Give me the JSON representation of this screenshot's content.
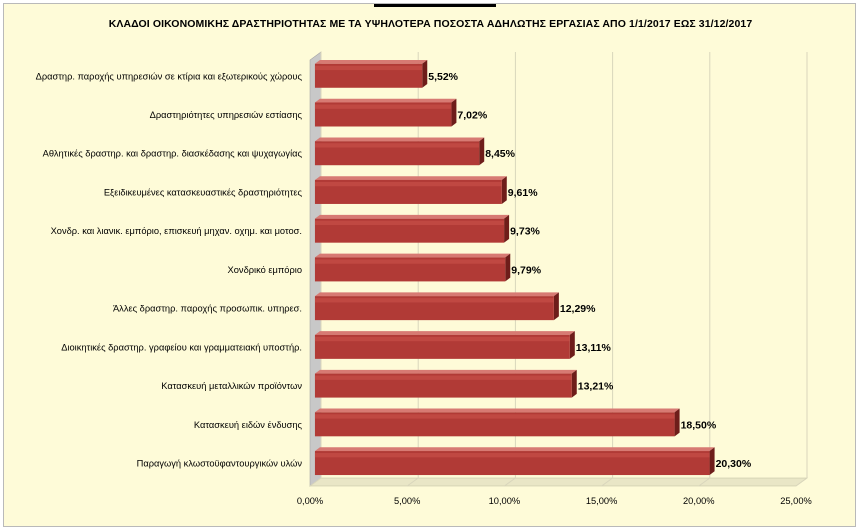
{
  "chart_data": {
    "type": "bar",
    "orientation": "horizontal",
    "title": "ΚΛΑΔΟΙ ΟΙΚΟΝΟΜΙΚΗΣ ΔΡΑΣΤΗΡΙΟΤΗΤΑΣ ΜΕ ΤΑ ΥΨΗΛΟΤΕΡΑ ΠΟΣΟΣΤΑ ΑΔΗΛΩΤΗΣ ΕΡΓΑΣΙΑΣ ΑΠΟ 1/1/2017 ΕΩΣ 31/12/2017",
    "xlabel": "",
    "ylabel": "",
    "xlim": [
      0,
      25
    ],
    "x_ticks": [
      "0,00%",
      "5,00%",
      "10,00%",
      "15,00%",
      "20,00%",
      "25,00%"
    ],
    "categories": [
      "Δραστηρ. παροχής υπηρεσιών σε κτίρια και εξωτερικούς χώρους",
      "Δραστηριότητες υπηρεσιών εστίασης",
      "Αθλητικές δραστηρ. και δραστηρ. διασκέδασης και ψυχαγωγίας",
      "Εξειδικευμένες κατασκευαστικές δραστηριότητες",
      "Χονδρ. και λιανικ. εμπόριο, επισκευή μηχαν. οχημ. και μοτοσ.",
      "Χονδρικό εμπόριο",
      "Άλλες δραστηρ. παροχής προσωπικ. υπηρεσ.",
      "Διοικητικές δραστηρ. γραφείου και γραμματειακή υποστήρ.",
      "Κατασκευή μεταλλικών προϊόντων",
      "Κατασκευή ειδών ένδυσης",
      "Παραγωγή κλωστοϋφαντουργικών υλών"
    ],
    "values": [
      5.52,
      7.02,
      8.45,
      9.61,
      9.73,
      9.79,
      12.29,
      13.11,
      13.21,
      18.5,
      20.3
    ],
    "value_labels": [
      "5,52%",
      "7,02%",
      "8,45%",
      "9,61%",
      "9,73%",
      "9,79%",
      "12,29%",
      "13,11%",
      "13,21%",
      "18,50%",
      "20,30%"
    ],
    "grid": true,
    "colors": {
      "bar_front": "#b13a36",
      "bar_top": "#d77a73",
      "bar_side": "#6e1d1a",
      "wall": "#c8c8c8",
      "gridline": "#d9d6bc",
      "background": "#fefbd8"
    }
  }
}
